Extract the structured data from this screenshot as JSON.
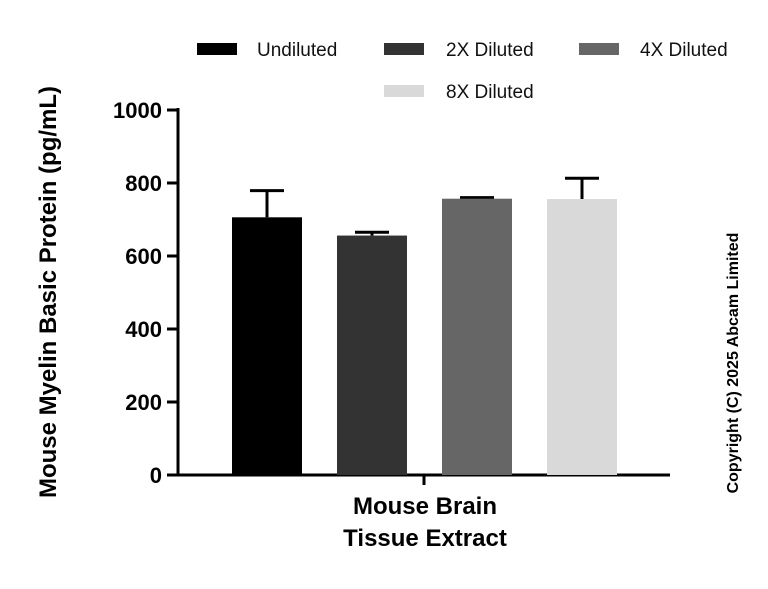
{
  "chart_data": {
    "type": "bar",
    "categories": [
      "Mouse Brain Tissue Extract"
    ],
    "category_label_lines": [
      "Mouse Brain",
      "Tissue Extract"
    ],
    "series": [
      {
        "name": "Undiluted",
        "values": [
          706
        ],
        "error": [
          73
        ],
        "color": "#000000"
      },
      {
        "name": "2X Diluted",
        "values": [
          656
        ],
        "error": [
          9
        ],
        "color": "#333333"
      },
      {
        "name": "4X Diluted",
        "values": [
          757
        ],
        "error": [
          3
        ],
        "color": "#666666"
      },
      {
        "name": "8X Diluted",
        "values": [
          756
        ],
        "error": [
          57
        ],
        "color": "#d9d9d9"
      }
    ],
    "ylabel": "Mouse Myelin Basic Protein (pg/mL)",
    "xlabel": "",
    "ylim": [
      0,
      1000
    ],
    "yticks": [
      0,
      200,
      400,
      600,
      800,
      1000
    ],
    "grid": false,
    "legend_position": "top"
  },
  "copyright": "Copyright (C) 2025 Abcam Limited"
}
